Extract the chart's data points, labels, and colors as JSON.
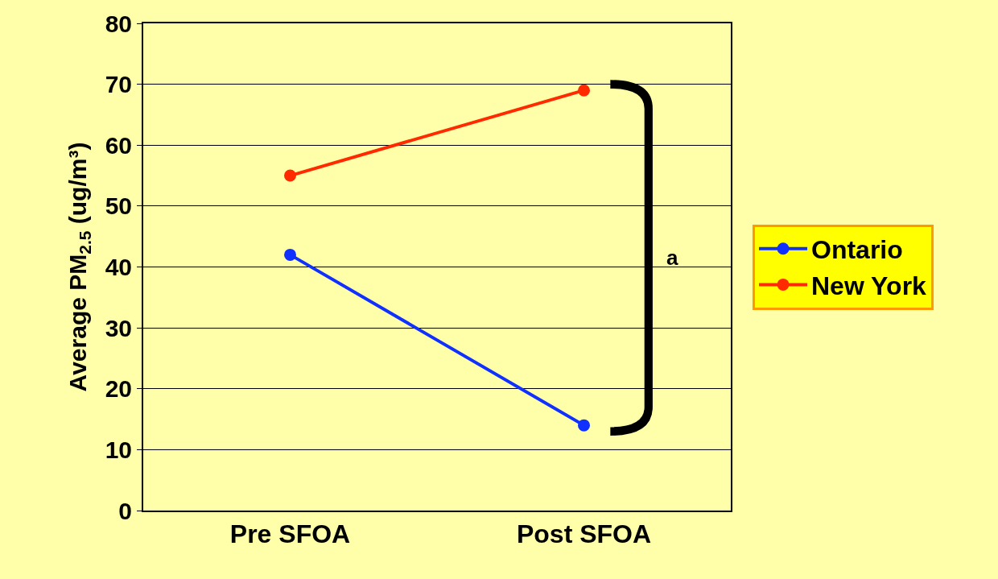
{
  "chart_data": {
    "type": "line",
    "ylabel": "Average PM$_{2.5}$ (ug/m³)",
    "categories": [
      "Pre SFOA",
      "Post SFOA"
    ],
    "series": [
      {
        "name": "Ontario",
        "color": "#1030ff",
        "values": [
          42,
          14
        ]
      },
      {
        "name": "New York",
        "color": "#ff2a00",
        "values": [
          55,
          69
        ]
      }
    ],
    "ylim": [
      0,
      80
    ],
    "yticks": [
      0,
      10,
      20,
      30,
      40,
      50,
      60,
      70,
      80
    ],
    "grid": "y",
    "legend": "right",
    "marker": "circle",
    "line_style": "solid",
    "annotations": [
      "a"
    ]
  }
}
